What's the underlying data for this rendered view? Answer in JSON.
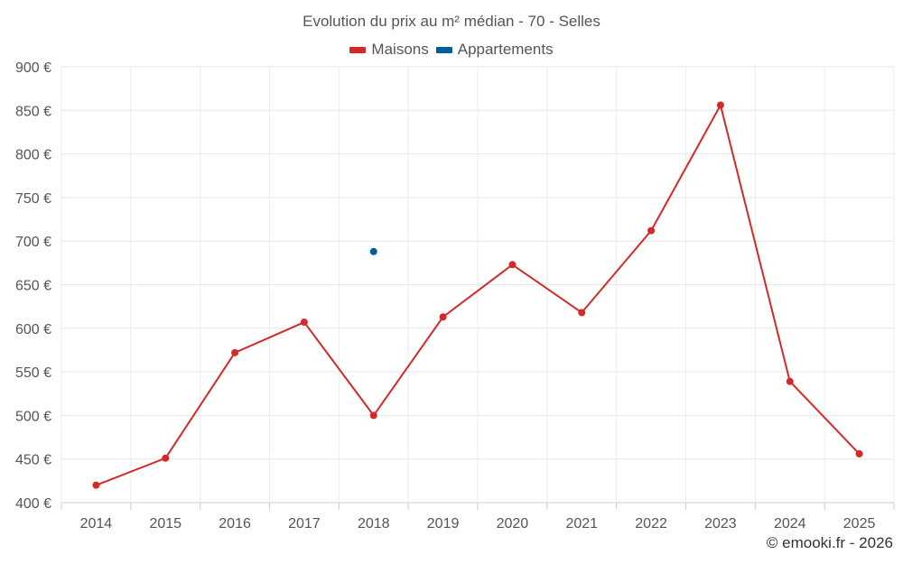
{
  "chart_data": {
    "type": "line",
    "title": "Evolution du prix au m² médian - 70 - Selles",
    "categories": [
      "2014",
      "2015",
      "2016",
      "2017",
      "2018",
      "2019",
      "2020",
      "2021",
      "2022",
      "2023",
      "2024",
      "2025"
    ],
    "series": [
      {
        "name": "Maisons",
        "color": "#d62828",
        "values": [
          420,
          451,
          572,
          607,
          500,
          613,
          673,
          618,
          712,
          856,
          539,
          456
        ]
      },
      {
        "name": "Appartements",
        "color": "#005f96",
        "values": [
          null,
          null,
          null,
          null,
          688,
          null,
          null,
          null,
          null,
          null,
          null,
          null
        ]
      }
    ],
    "yticks": [
      "400 €",
      "450 €",
      "500 €",
      "550 €",
      "600 €",
      "650 €",
      "700 €",
      "750 €",
      "800 €",
      "850 €",
      "900 €"
    ],
    "ylim": [
      400,
      900
    ],
    "ystep": 50,
    "xlabel": "",
    "ylabel": "",
    "grid": true,
    "legend_position": "top-center"
  },
  "footer": {
    "copyright": "© emooki.fr - 2026"
  }
}
